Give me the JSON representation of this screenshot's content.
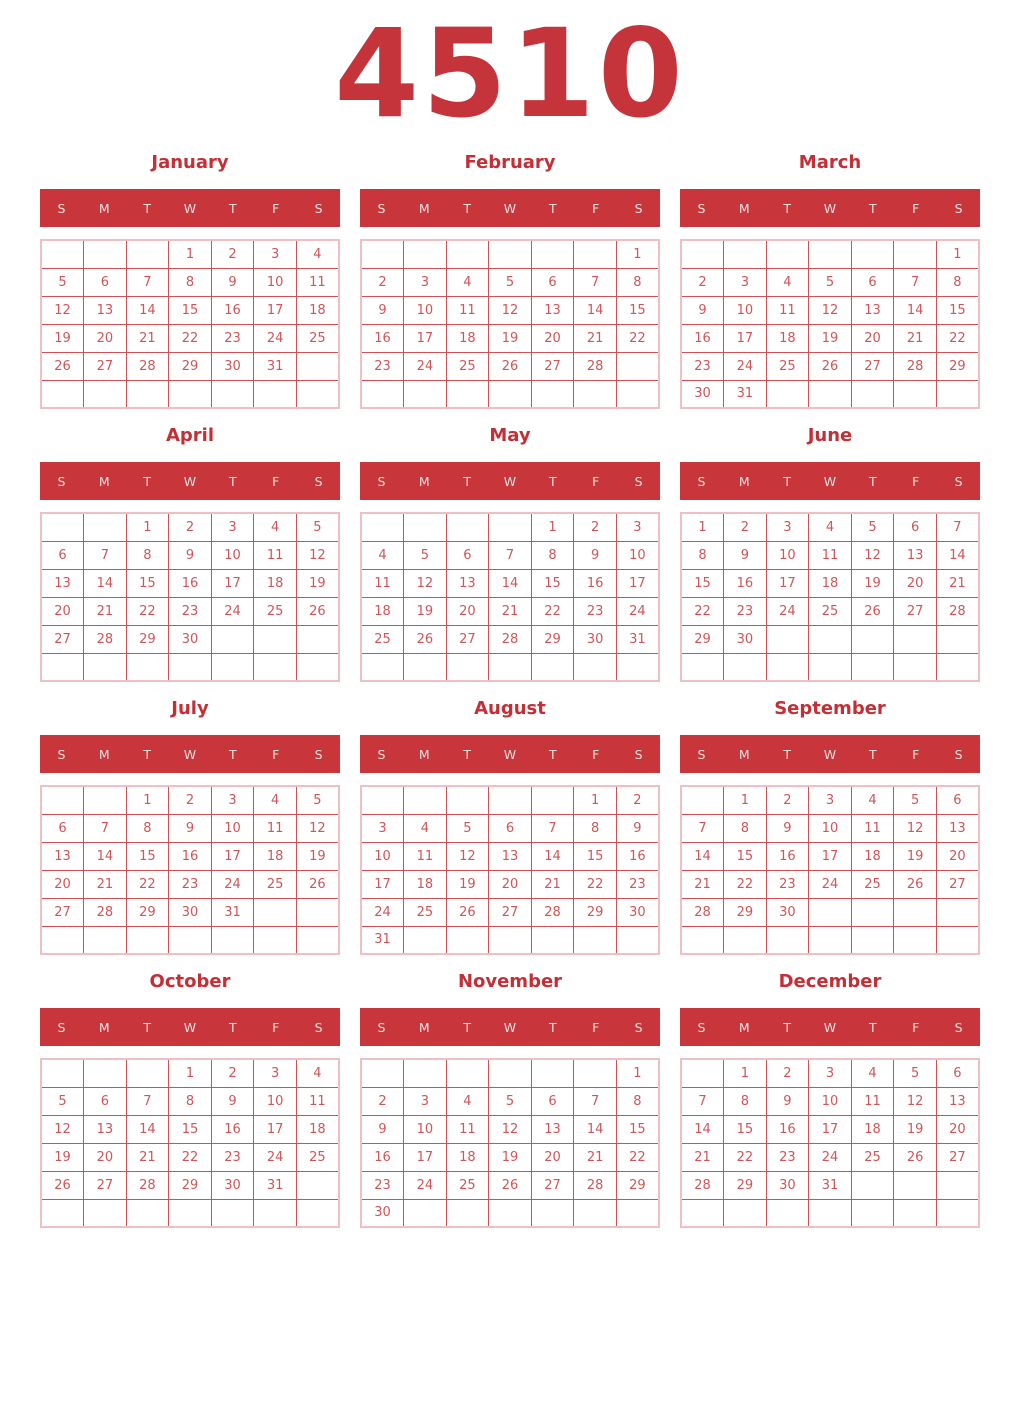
{
  "year": "4510",
  "weekdays": [
    "S",
    "M",
    "T",
    "W",
    "T",
    "F",
    "S"
  ],
  "colors": {
    "title_red": "#c32f35",
    "band_background": "#c8363b",
    "band_text": "#f2e1e1",
    "date_text": "#d05559",
    "inner_border": "#d05155",
    "outer_border": "#eec0c1",
    "page_background": "#ffffff"
  },
  "months": [
    {
      "name": "January",
      "weeks": [
        [
          "",
          "",
          "",
          "1",
          "2",
          "3",
          "4"
        ],
        [
          "5",
          "6",
          "7",
          "8",
          "9",
          "10",
          "11"
        ],
        [
          "12",
          "13",
          "14",
          "15",
          "16",
          "17",
          "18"
        ],
        [
          "19",
          "20",
          "21",
          "22",
          "23",
          "24",
          "25"
        ],
        [
          "26",
          "27",
          "28",
          "29",
          "30",
          "31",
          ""
        ],
        [
          "",
          "",
          "",
          "",
          "",
          "",
          ""
        ]
      ]
    },
    {
      "name": "February",
      "weeks": [
        [
          "",
          "",
          "",
          "",
          "",
          "",
          "1"
        ],
        [
          "2",
          "3",
          "4",
          "5",
          "6",
          "7",
          "8"
        ],
        [
          "9",
          "10",
          "11",
          "12",
          "13",
          "14",
          "15"
        ],
        [
          "16",
          "17",
          "18",
          "19",
          "20",
          "21",
          "22"
        ],
        [
          "23",
          "24",
          "25",
          "26",
          "27",
          "28",
          ""
        ],
        [
          "",
          "",
          "",
          "",
          "",
          "",
          ""
        ]
      ]
    },
    {
      "name": "March",
      "weeks": [
        [
          "",
          "",
          "",
          "",
          "",
          "",
          "1"
        ],
        [
          "2",
          "3",
          "4",
          "5",
          "6",
          "7",
          "8"
        ],
        [
          "9",
          "10",
          "11",
          "12",
          "13",
          "14",
          "15"
        ],
        [
          "16",
          "17",
          "18",
          "19",
          "20",
          "21",
          "22"
        ],
        [
          "23",
          "24",
          "25",
          "26",
          "27",
          "28",
          "29"
        ],
        [
          "30",
          "31",
          "",
          "",
          "",
          "",
          ""
        ]
      ]
    },
    {
      "name": "April",
      "weeks": [
        [
          "",
          "",
          "1",
          "2",
          "3",
          "4",
          "5"
        ],
        [
          "6",
          "7",
          "8",
          "9",
          "10",
          "11",
          "12"
        ],
        [
          "13",
          "14",
          "15",
          "16",
          "17",
          "18",
          "19"
        ],
        [
          "20",
          "21",
          "22",
          "23",
          "24",
          "25",
          "26"
        ],
        [
          "27",
          "28",
          "29",
          "30",
          "",
          "",
          ""
        ],
        [
          "",
          "",
          "",
          "",
          "",
          "",
          ""
        ]
      ]
    },
    {
      "name": "May",
      "weeks": [
        [
          "",
          "",
          "",
          "",
          "1",
          "2",
          "3"
        ],
        [
          "4",
          "5",
          "6",
          "7",
          "8",
          "9",
          "10"
        ],
        [
          "11",
          "12",
          "13",
          "14",
          "15",
          "16",
          "17"
        ],
        [
          "18",
          "19",
          "20",
          "21",
          "22",
          "23",
          "24"
        ],
        [
          "25",
          "26",
          "27",
          "28",
          "29",
          "30",
          "31"
        ],
        [
          "",
          "",
          "",
          "",
          "",
          "",
          ""
        ]
      ]
    },
    {
      "name": "June",
      "weeks": [
        [
          "1",
          "2",
          "3",
          "4",
          "5",
          "6",
          "7"
        ],
        [
          "8",
          "9",
          "10",
          "11",
          "12",
          "13",
          "14"
        ],
        [
          "15",
          "16",
          "17",
          "18",
          "19",
          "20",
          "21"
        ],
        [
          "22",
          "23",
          "24",
          "25",
          "26",
          "27",
          "28"
        ],
        [
          "29",
          "30",
          "",
          "",
          "",
          "",
          ""
        ],
        [
          "",
          "",
          "",
          "",
          "",
          "",
          ""
        ]
      ]
    },
    {
      "name": "July",
      "weeks": [
        [
          "",
          "",
          "1",
          "2",
          "3",
          "4",
          "5"
        ],
        [
          "6",
          "7",
          "8",
          "9",
          "10",
          "11",
          "12"
        ],
        [
          "13",
          "14",
          "15",
          "16",
          "17",
          "18",
          "19"
        ],
        [
          "20",
          "21",
          "22",
          "23",
          "24",
          "25",
          "26"
        ],
        [
          "27",
          "28",
          "29",
          "30",
          "31",
          "",
          ""
        ],
        [
          "",
          "",
          "",
          "",
          "",
          "",
          ""
        ]
      ]
    },
    {
      "name": "August",
      "weeks": [
        [
          "",
          "",
          "",
          "",
          "",
          "1",
          "2"
        ],
        [
          "3",
          "4",
          "5",
          "6",
          "7",
          "8",
          "9"
        ],
        [
          "10",
          "11",
          "12",
          "13",
          "14",
          "15",
          "16"
        ],
        [
          "17",
          "18",
          "19",
          "20",
          "21",
          "22",
          "23"
        ],
        [
          "24",
          "25",
          "26",
          "27",
          "28",
          "29",
          "30"
        ],
        [
          "31",
          "",
          "",
          "",
          "",
          "",
          ""
        ]
      ]
    },
    {
      "name": "September",
      "weeks": [
        [
          "",
          "1",
          "2",
          "3",
          "4",
          "5",
          "6"
        ],
        [
          "7",
          "8",
          "9",
          "10",
          "11",
          "12",
          "13"
        ],
        [
          "14",
          "15",
          "16",
          "17",
          "18",
          "19",
          "20"
        ],
        [
          "21",
          "22",
          "23",
          "24",
          "25",
          "26",
          "27"
        ],
        [
          "28",
          "29",
          "30",
          "",
          "",
          "",
          ""
        ],
        [
          "",
          "",
          "",
          "",
          "",
          "",
          ""
        ]
      ]
    },
    {
      "name": "October",
      "weeks": [
        [
          "",
          "",
          "",
          "1",
          "2",
          "3",
          "4"
        ],
        [
          "5",
          "6",
          "7",
          "8",
          "9",
          "10",
          "11"
        ],
        [
          "12",
          "13",
          "14",
          "15",
          "16",
          "17",
          "18"
        ],
        [
          "19",
          "20",
          "21",
          "22",
          "23",
          "24",
          "25"
        ],
        [
          "26",
          "27",
          "28",
          "29",
          "30",
          "31",
          ""
        ],
        [
          "",
          "",
          "",
          "",
          "",
          "",
          ""
        ]
      ]
    },
    {
      "name": "November",
      "weeks": [
        [
          "",
          "",
          "",
          "",
          "",
          "",
          "1"
        ],
        [
          "2",
          "3",
          "4",
          "5",
          "6",
          "7",
          "8"
        ],
        [
          "9",
          "10",
          "11",
          "12",
          "13",
          "14",
          "15"
        ],
        [
          "16",
          "17",
          "18",
          "19",
          "20",
          "21",
          "22"
        ],
        [
          "23",
          "24",
          "25",
          "26",
          "27",
          "28",
          "29"
        ],
        [
          "30",
          "",
          "",
          "",
          "",
          "",
          ""
        ]
      ]
    },
    {
      "name": "December",
      "weeks": [
        [
          "",
          "1",
          "2",
          "3",
          "4",
          "5",
          "6"
        ],
        [
          "7",
          "8",
          "9",
          "10",
          "11",
          "12",
          "13"
        ],
        [
          "14",
          "15",
          "16",
          "17",
          "18",
          "19",
          "20"
        ],
        [
          "21",
          "22",
          "23",
          "24",
          "25",
          "26",
          "27"
        ],
        [
          "28",
          "29",
          "30",
          "31",
          "",
          "",
          ""
        ],
        [
          "",
          "",
          "",
          "",
          "",
          "",
          ""
        ]
      ]
    }
  ]
}
